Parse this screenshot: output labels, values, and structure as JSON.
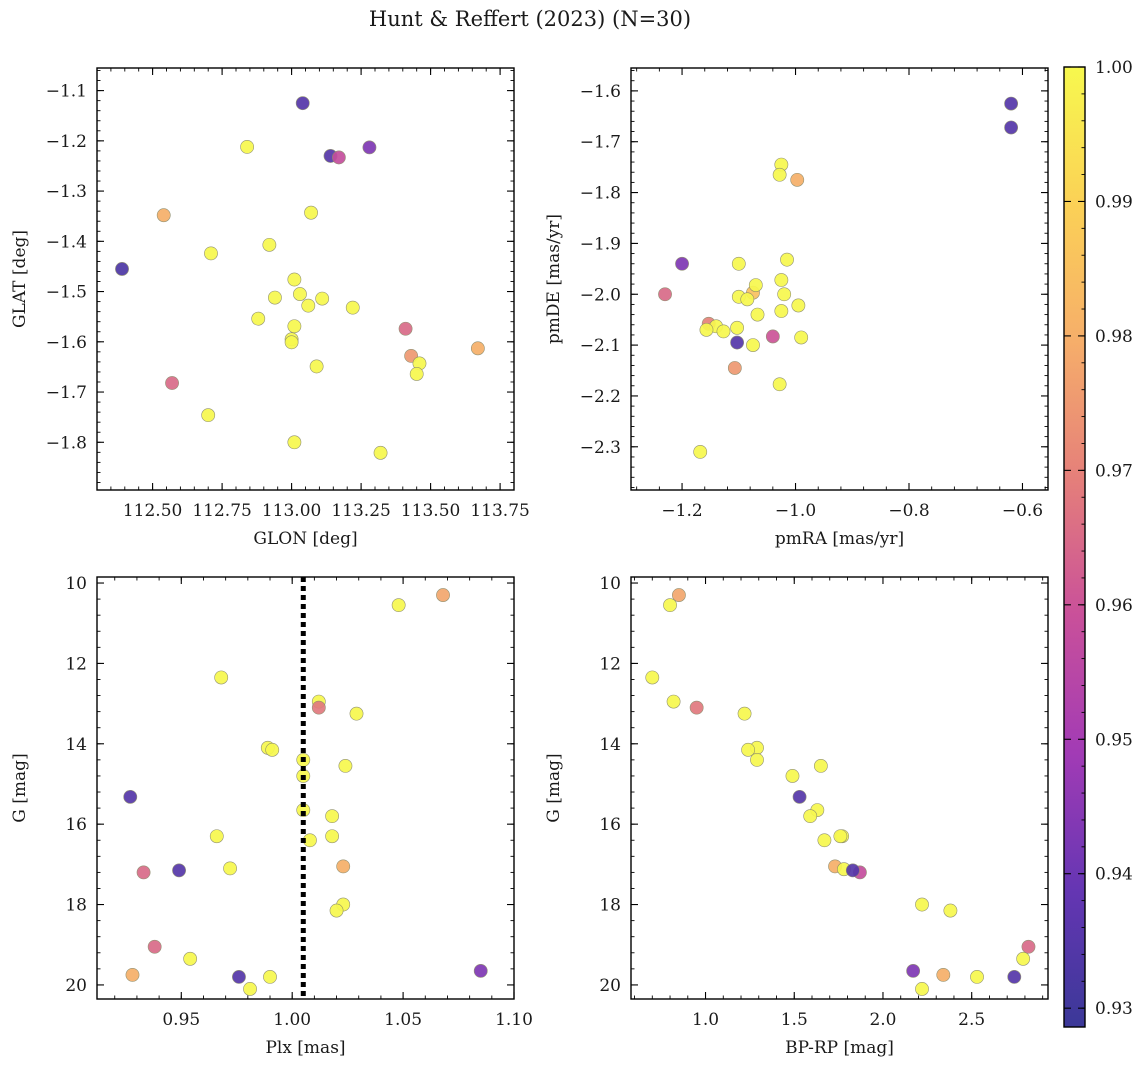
{
  "figure": {
    "title": "Hunt & Reffert (2023) (N=30)"
  },
  "colorbar": {
    "range": [
      0.9286,
      1.0
    ],
    "ticks": [
      0.93,
      0.94,
      0.95,
      0.96,
      0.97,
      0.98,
      0.99,
      1.0
    ],
    "tick_labels": [
      "0.93",
      "0.94",
      "0.95",
      "0.96",
      "0.97",
      "0.98",
      "0.99",
      "1.00"
    ],
    "colormap": "plasma (clipped)",
    "stops": [
      "#3b3898",
      "#6536b3",
      "#a23bb5",
      "#c9509a",
      "#e57f7a",
      "#f6ae6a",
      "#fbd156",
      "#f7f84e"
    ]
  },
  "chart_data": [
    {
      "type": "scatter",
      "panel": "top-left",
      "xlabel": "GLON [deg]",
      "ylabel": "GLAT [deg]",
      "xlim": [
        112.3,
        113.8
      ],
      "ylim": [
        -1.895,
        -1.055
      ],
      "invert_y": false,
      "xticks": [
        112.5,
        112.75,
        113.0,
        113.25,
        113.5,
        113.75
      ],
      "xtick_labels": [
        "112.50",
        "112.75",
        "113.00",
        "113.25",
        "113.50",
        "113.75"
      ],
      "yticks": [
        -1.1,
        -1.2,
        -1.3,
        -1.4,
        -1.5,
        -1.6,
        -1.7,
        -1.8
      ],
      "ytick_labels": [
        "−1.1",
        "−1.2",
        "−1.3",
        "−1.4",
        "−1.5",
        "−1.6",
        "−1.7",
        "−1.8"
      ],
      "x": [
        113.04,
        113.28,
        113.14,
        113.17,
        112.84,
        112.54,
        113.07,
        112.71,
        112.92,
        112.39,
        113.01,
        113.03,
        112.94,
        113.11,
        113.06,
        113.22,
        112.88,
        113.01,
        113.41,
        113.0,
        113.0,
        113.43,
        113.46,
        113.09,
        113.67,
        113.45,
        112.57,
        112.7,
        113.01,
        113.32
      ],
      "y": [
        -1.125,
        -1.213,
        -1.23,
        -1.233,
        -1.212,
        -1.348,
        -1.343,
        -1.424,
        -1.407,
        -1.455,
        -1.476,
        -1.505,
        -1.512,
        -1.514,
        -1.528,
        -1.532,
        -1.554,
        -1.569,
        -1.574,
        -1.595,
        -1.601,
        -1.628,
        -1.643,
        -1.649,
        -1.613,
        -1.664,
        -1.682,
        -1.746,
        -1.8,
        -1.821
      ],
      "c": [
        0.935,
        0.943,
        0.935,
        0.958,
        1.0,
        0.98,
        1.0,
        1.0,
        1.0,
        0.933,
        1.0,
        1.0,
        1.0,
        1.0,
        1.0,
        1.0,
        1.0,
        1.0,
        0.965,
        1.0,
        1.0,
        0.975,
        1.0,
        1.0,
        0.98,
        1.0,
        0.965,
        1.0,
        1.0,
        1.0
      ]
    },
    {
      "type": "scatter",
      "panel": "top-right",
      "xlabel": "pmRA [mas/yr]",
      "ylabel": "pmDE [mas/yr]",
      "xlim": [
        -1.29,
        -0.555
      ],
      "ylim": [
        -2.385,
        -1.555
      ],
      "invert_y": false,
      "xticks": [
        -1.2,
        -1.0,
        -0.8,
        -0.6
      ],
      "xtick_labels": [
        "−1.2",
        "−1.0",
        "−0.8",
        "−0.6"
      ],
      "yticks": [
        -1.6,
        -1.7,
        -1.8,
        -1.9,
        -2.0,
        -2.1,
        -2.2,
        -2.3
      ],
      "ytick_labels": [
        "−1.6",
        "−1.7",
        "−1.8",
        "−1.9",
        "−2.0",
        "−2.1",
        "−2.2",
        "−2.3"
      ],
      "x": [
        -0.62,
        -0.62,
        -1.025,
        -1.028,
        -0.997,
        -1.2,
        -1.1,
        -1.015,
        -1.23,
        -1.075,
        -1.025,
        -1.1,
        -1.085,
        -1.07,
        -1.02,
        -0.995,
        -1.025,
        -1.067,
        -1.153,
        -1.103,
        -1.14,
        -1.157,
        -1.127,
        -1.04,
        -0.99,
        -1.103,
        -1.075,
        -1.107,
        -1.028,
        -1.168
      ],
      "y": [
        -1.625,
        -1.672,
        -1.745,
        -1.765,
        -1.775,
        -1.94,
        -1.94,
        -1.932,
        -2.0,
        -1.997,
        -1.972,
        -2.005,
        -2.01,
        -1.982,
        -2.0,
        -2.022,
        -2.033,
        -2.04,
        -2.058,
        -2.066,
        -2.063,
        -2.07,
        -2.073,
        -2.083,
        -2.085,
        -2.095,
        -2.1,
        -2.145,
        -2.177,
        -2.31
      ],
      "c": [
        0.935,
        0.935,
        1.0,
        1.0,
        0.98,
        0.943,
        1.0,
        1.0,
        0.965,
        0.985,
        1.0,
        1.0,
        1.0,
        1.0,
        1.0,
        1.0,
        1.0,
        1.0,
        0.97,
        1.0,
        1.0,
        1.0,
        1.0,
        0.96,
        1.0,
        0.935,
        1.0,
        0.975,
        1.0,
        1.0
      ]
    },
    {
      "type": "scatter",
      "panel": "bottom-left",
      "xlabel": "Plx [mas]",
      "ylabel": "G [mag]",
      "xlim": [
        0.912,
        1.1
      ],
      "ylim": [
        20.35,
        9.85
      ],
      "invert_y": true,
      "vline": {
        "x": 1.005,
        "style": "dotted"
      },
      "xticks": [
        0.95,
        1.0,
        1.05,
        1.1
      ],
      "xtick_labels": [
        "0.95",
        "1.00",
        "1.05",
        "1.10"
      ],
      "yticks": [
        10,
        12,
        14,
        16,
        18,
        20
      ],
      "ytick_labels": [
        "10",
        "12",
        "14",
        "16",
        "18",
        "20"
      ],
      "x": [
        1.068,
        1.048,
        0.968,
        1.012,
        1.012,
        1.029,
        0.989,
        0.991,
        1.005,
        1.005,
        1.024,
        0.927,
        1.005,
        1.018,
        1.008,
        1.018,
        0.966,
        0.972,
        0.933,
        0.949,
        1.023,
        1.023,
        1.02,
        0.938,
        0.954,
        0.928,
        0.976,
        0.99,
        1.085,
        0.981
      ],
      "y": [
        10.3,
        10.55,
        12.35,
        12.95,
        13.1,
        13.25,
        14.1,
        14.15,
        14.4,
        14.8,
        14.55,
        15.32,
        15.65,
        15.8,
        16.4,
        16.3,
        16.3,
        17.1,
        17.2,
        17.15,
        17.05,
        18.0,
        18.15,
        19.05,
        19.35,
        19.75,
        19.8,
        19.8,
        19.65,
        20.1
      ],
      "c": [
        0.978,
        1.0,
        1.0,
        1.0,
        0.968,
        1.0,
        1.0,
        1.0,
        1.0,
        1.0,
        1.0,
        0.935,
        1.0,
        1.0,
        1.0,
        1.0,
        1.0,
        1.0,
        0.965,
        0.935,
        0.98,
        1.0,
        1.0,
        0.965,
        1.0,
        0.98,
        0.935,
        1.0,
        0.943,
        1.0
      ]
    },
    {
      "type": "scatter",
      "panel": "bottom-right",
      "xlabel": "BP-RP [mag]",
      "ylabel": "G [mag]",
      "xlim": [
        0.58,
        2.93
      ],
      "ylim": [
        20.35,
        9.85
      ],
      "invert_y": true,
      "xticks": [
        1.0,
        1.5,
        2.0,
        2.5
      ],
      "xtick_labels": [
        "1.0",
        "1.5",
        "2.0",
        "2.5"
      ],
      "yticks": [
        10,
        12,
        14,
        16,
        18,
        20
      ],
      "ytick_labels": [
        "10",
        "12",
        "14",
        "16",
        "18",
        "20"
      ],
      "x": [
        0.85,
        0.8,
        0.7,
        0.82,
        0.95,
        1.22,
        1.29,
        1.24,
        1.29,
        1.65,
        1.49,
        1.53,
        1.63,
        1.59,
        1.67,
        1.77,
        1.76,
        1.73,
        1.78,
        1.87,
        1.83,
        2.22,
        2.38,
        2.82,
        2.79,
        2.17,
        2.34,
        2.53,
        2.74,
        2.22
      ],
      "y": [
        10.3,
        10.55,
        12.35,
        12.95,
        13.1,
        13.25,
        14.1,
        14.15,
        14.4,
        14.55,
        14.8,
        15.32,
        15.65,
        15.8,
        16.4,
        16.3,
        16.3,
        17.05,
        17.12,
        17.2,
        17.15,
        18.0,
        18.15,
        19.05,
        19.35,
        19.65,
        19.75,
        19.8,
        19.8,
        20.1
      ],
      "c": [
        0.978,
        1.0,
        1.0,
        1.0,
        0.968,
        1.0,
        1.0,
        1.0,
        1.0,
        1.0,
        1.0,
        0.935,
        1.0,
        1.0,
        1.0,
        1.0,
        1.0,
        0.98,
        1.0,
        0.958,
        0.935,
        1.0,
        1.0,
        0.965,
        1.0,
        0.943,
        0.98,
        1.0,
        0.935,
        1.0
      ]
    }
  ]
}
